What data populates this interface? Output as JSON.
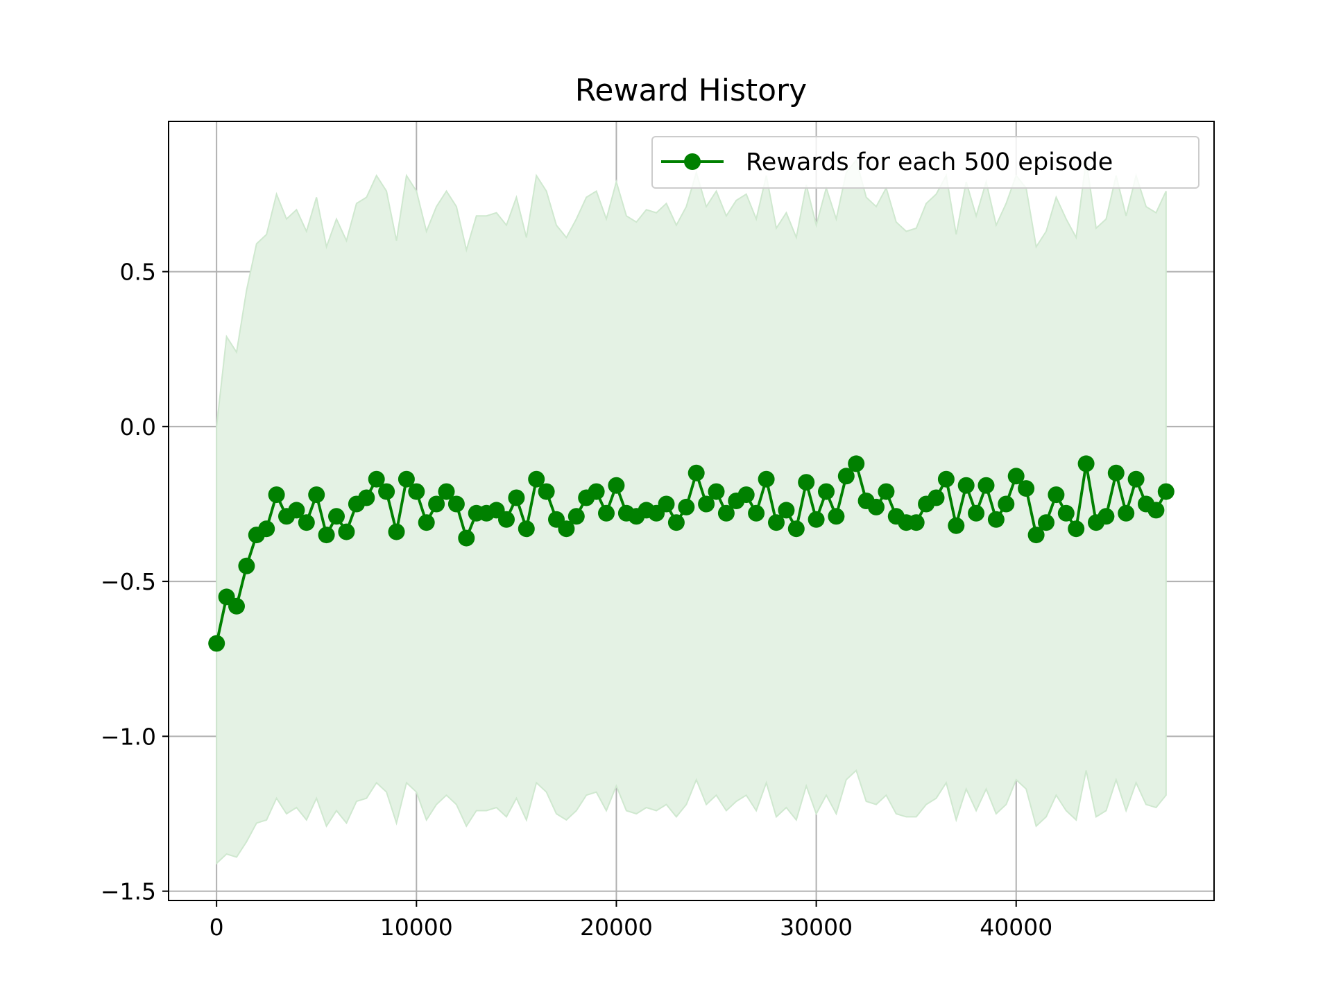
{
  "colors": {
    "line": "#008000",
    "band_fill": "#e4f2e4",
    "band_edge": "#cfe8cf",
    "grid": "#b0b0b0",
    "axes": "#000000",
    "legend_border": "#cccccc"
  },
  "chart_data": {
    "type": "line",
    "title": "Reward History",
    "xlabel": "",
    "ylabel": "",
    "xlim": [
      -2400,
      49900
    ],
    "ylim": [
      -1.53,
      0.985
    ],
    "grid": true,
    "legend_placement": "top-right",
    "x_ticks": [
      0,
      10000,
      20000,
      30000,
      40000
    ],
    "x_tick_labels": [
      "0",
      "10000",
      "20000",
      "30000",
      "40000"
    ],
    "y_ticks": [
      0.5,
      0.0,
      -0.5,
      -1.0,
      -1.5
    ],
    "y_tick_labels": [
      "0.5",
      "0.0",
      "−0.5",
      "−1.0",
      "−1.5"
    ],
    "series": [
      {
        "name": "Rewards for each 500 episode",
        "marker": "circle",
        "x_start": 0,
        "x_step": 500,
        "values": [
          -0.7,
          -0.55,
          -0.58,
          -0.45,
          -0.35,
          -0.33,
          -0.22,
          -0.29,
          -0.27,
          -0.31,
          -0.22,
          -0.35,
          -0.29,
          -0.34,
          -0.25,
          -0.23,
          -0.17,
          -0.21,
          -0.34,
          -0.17,
          -0.21,
          -0.31,
          -0.25,
          -0.21,
          -0.25,
          -0.36,
          -0.28,
          -0.28,
          -0.27,
          -0.3,
          -0.23,
          -0.33,
          -0.17,
          -0.21,
          -0.3,
          -0.33,
          -0.29,
          -0.23,
          -0.21,
          -0.28,
          -0.19,
          -0.28,
          -0.29,
          -0.27,
          -0.28,
          -0.25,
          -0.31,
          -0.26,
          -0.15,
          -0.25,
          -0.21,
          -0.28,
          -0.24,
          -0.22,
          -0.28,
          -0.17,
          -0.31,
          -0.27,
          -0.33,
          -0.18,
          -0.3,
          -0.21,
          -0.29,
          -0.16,
          -0.12,
          -0.24,
          -0.26,
          -0.21,
          -0.29,
          -0.31,
          -0.31,
          -0.25,
          -0.23,
          -0.17,
          -0.32,
          -0.19,
          -0.28,
          -0.19,
          -0.3,
          -0.25,
          -0.16,
          -0.2,
          -0.35,
          -0.31,
          -0.22,
          -0.28,
          -0.33,
          -0.12,
          -0.31,
          -0.29,
          -0.15,
          -0.28,
          -0.17,
          -0.25,
          -0.27,
          -0.21
        ],
        "band_upper": [
          0.0,
          0.29,
          0.24,
          0.44,
          0.59,
          0.62,
          0.75,
          0.67,
          0.7,
          0.63,
          0.74,
          0.58,
          0.67,
          0.6,
          0.72,
          0.74,
          0.81,
          0.76,
          0.6,
          0.81,
          0.76,
          0.63,
          0.71,
          0.76,
          0.71,
          0.57,
          0.68,
          0.68,
          0.69,
          0.65,
          0.74,
          0.61,
          0.81,
          0.76,
          0.65,
          0.61,
          0.67,
          0.74,
          0.76,
          0.67,
          0.79,
          0.68,
          0.66,
          0.7,
          0.69,
          0.72,
          0.65,
          0.71,
          0.82,
          0.71,
          0.76,
          0.68,
          0.73,
          0.75,
          0.67,
          0.81,
          0.64,
          0.69,
          0.61,
          0.78,
          0.65,
          0.77,
          0.67,
          0.82,
          0.86,
          0.74,
          0.71,
          0.77,
          0.66,
          0.63,
          0.64,
          0.72,
          0.75,
          0.81,
          0.62,
          0.79,
          0.68,
          0.79,
          0.65,
          0.72,
          0.81,
          0.77,
          0.58,
          0.63,
          0.74,
          0.67,
          0.61,
          0.86,
          0.64,
          0.67,
          0.81,
          0.68,
          0.81,
          0.71,
          0.69,
          0.76
        ],
        "band_lower": [
          -1.41,
          -1.38,
          -1.39,
          -1.34,
          -1.28,
          -1.27,
          -1.2,
          -1.25,
          -1.23,
          -1.27,
          -1.2,
          -1.29,
          -1.24,
          -1.28,
          -1.21,
          -1.2,
          -1.15,
          -1.18,
          -1.28,
          -1.15,
          -1.18,
          -1.27,
          -1.22,
          -1.19,
          -1.22,
          -1.29,
          -1.24,
          -1.24,
          -1.23,
          -1.26,
          -1.2,
          -1.27,
          -1.15,
          -1.18,
          -1.25,
          -1.27,
          -1.24,
          -1.19,
          -1.18,
          -1.24,
          -1.16,
          -1.24,
          -1.25,
          -1.23,
          -1.24,
          -1.22,
          -1.26,
          -1.22,
          -1.14,
          -1.22,
          -1.19,
          -1.24,
          -1.21,
          -1.19,
          -1.24,
          -1.15,
          -1.26,
          -1.23,
          -1.27,
          -1.16,
          -1.25,
          -1.19,
          -1.25,
          -1.14,
          -1.11,
          -1.21,
          -1.22,
          -1.19,
          -1.25,
          -1.26,
          -1.26,
          -1.22,
          -1.2,
          -1.15,
          -1.27,
          -1.17,
          -1.24,
          -1.17,
          -1.25,
          -1.22,
          -1.14,
          -1.17,
          -1.29,
          -1.26,
          -1.19,
          -1.24,
          -1.27,
          -1.11,
          -1.26,
          -1.24,
          -1.14,
          -1.24,
          -1.15,
          -1.22,
          -1.23,
          -1.19
        ]
      }
    ]
  }
}
